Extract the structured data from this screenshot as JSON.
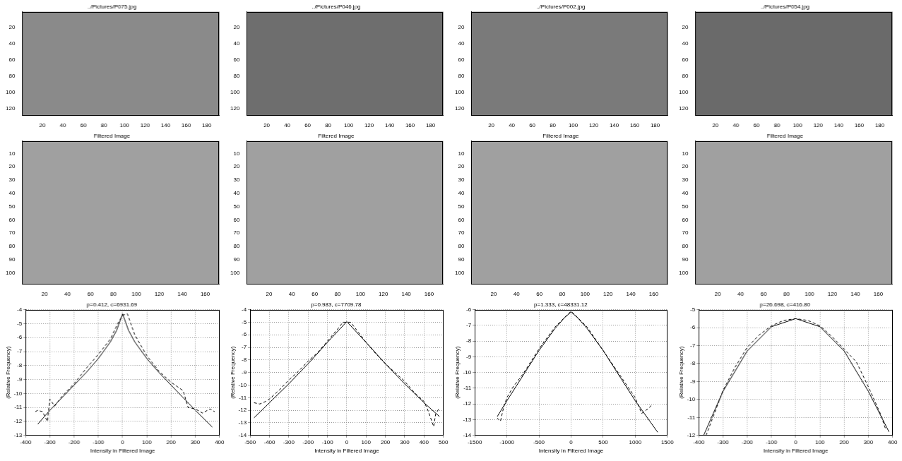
{
  "chart_data": [
    {
      "type": "image",
      "title": "../Pictures/P075.jpg",
      "xlim": [
        0.5,
        192.5
      ],
      "ylim": [
        0.5,
        128.5
      ],
      "xticks": [
        20,
        40,
        60,
        80,
        100,
        120,
        140,
        160,
        180
      ],
      "yticks": [
        20,
        40,
        60,
        80,
        100,
        120
      ],
      "color": "#8a8a8a"
    },
    {
      "type": "image",
      "title": "../Pictures/P046.jpg",
      "xlim": [
        0.5,
        192.5
      ],
      "ylim": [
        0.5,
        128.5
      ],
      "xticks": [
        20,
        40,
        60,
        80,
        100,
        120,
        140,
        160,
        180
      ],
      "yticks": [
        20,
        40,
        60,
        80,
        100,
        120
      ],
      "color": "#6e6e6e"
    },
    {
      "type": "image",
      "title": "../Pictures/P002.jpg",
      "xlim": [
        0.5,
        192.5
      ],
      "ylim": [
        0.5,
        128.5
      ],
      "xticks": [
        20,
        40,
        60,
        80,
        100,
        120,
        140,
        160,
        180
      ],
      "yticks": [
        20,
        40,
        60,
        80,
        100,
        120
      ],
      "color": "#7a7a7a"
    },
    {
      "type": "image",
      "title": "../Pictures/P054.jpg",
      "xlim": [
        0.5,
        192.5
      ],
      "ylim": [
        0.5,
        128.5
      ],
      "xticks": [
        20,
        40,
        60,
        80,
        100,
        120,
        140,
        160,
        180
      ],
      "yticks": [
        20,
        40,
        60,
        80,
        100,
        120
      ],
      "color": "#6a6a6a"
    },
    {
      "type": "image",
      "title": "Filtered Image",
      "xlim": [
        0.5,
        172.5
      ],
      "ylim": [
        0.5,
        108.5
      ],
      "xticks": [
        20,
        40,
        60,
        80,
        100,
        120,
        140,
        160
      ],
      "yticks": [
        10,
        20,
        30,
        40,
        50,
        60,
        70,
        80,
        90,
        100
      ],
      "color": "#a0a0a0"
    },
    {
      "type": "image",
      "title": "Filtered Image",
      "xlim": [
        0.5,
        172.5
      ],
      "ylim": [
        0.5,
        108.5
      ],
      "xticks": [
        20,
        40,
        60,
        80,
        100,
        120,
        140,
        160
      ],
      "yticks": [
        10,
        20,
        30,
        40,
        50,
        60,
        70,
        80,
        90,
        100
      ],
      "color": "#a0a0a0"
    },
    {
      "type": "image",
      "title": "Filtered Image",
      "xlim": [
        0.5,
        172.5
      ],
      "ylim": [
        0.5,
        108.5
      ],
      "xticks": [
        20,
        40,
        60,
        80,
        100,
        120,
        140,
        160
      ],
      "yticks": [
        10,
        20,
        30,
        40,
        50,
        60,
        70,
        80,
        90,
        100
      ],
      "color": "#a0a0a0"
    },
    {
      "type": "image",
      "title": "Filtered Image",
      "xlim": [
        0.5,
        172.5
      ],
      "ylim": [
        0.5,
        108.5
      ],
      "xticks": [
        20,
        40,
        60,
        80,
        100,
        120,
        140,
        160
      ],
      "yticks": [
        10,
        20,
        30,
        40,
        50,
        60,
        70,
        80,
        90,
        100
      ],
      "color": "#a0a0a0"
    },
    {
      "type": "line",
      "title": "p=0.412, c=6931.69",
      "x_label": "Intensity in Filtered Image",
      "y_label": "(Relative Frequency)",
      "grid": true,
      "xlim": [
        -400,
        400
      ],
      "xticks": [
        -400,
        -300,
        -200,
        -100,
        0,
        100,
        200,
        300,
        400
      ],
      "ylim": [
        -13,
        -4
      ],
      "yticks": [
        -13,
        -12,
        -11,
        -10,
        -9,
        -8,
        -7,
        -6,
        -5,
        -4
      ],
      "series": [
        {
          "color": "#000000",
          "line_style": "dashed",
          "x": [
            -360,
            -350,
            -330,
            -310,
            -300,
            -280,
            -250,
            -200,
            -150,
            -100,
            -50,
            -20,
            0,
            20,
            50,
            100,
            150,
            200,
            250,
            270,
            300,
            330,
            360,
            380
          ],
          "values": [
            -11.3,
            -11.2,
            -11.3,
            -12.0,
            -10.4,
            -10.9,
            -10.2,
            -9.3,
            -8.2,
            -7.2,
            -6.1,
            -5.0,
            -4.4,
            -4.3,
            -5.8,
            -7.3,
            -8.4,
            -9.2,
            -9.8,
            -11.0,
            -11.1,
            -11.4,
            -11.1,
            -11.3
          ]
        },
        {
          "color": "#000000",
          "line_style": "solid",
          "x": [
            -350,
            -300,
            -250,
            -200,
            -150,
            -100,
            -50,
            -25,
            0,
            25,
            50,
            100,
            150,
            200,
            250,
            300,
            370
          ],
          "values": [
            -12.2,
            -11.2,
            -10.3,
            -9.4,
            -8.5,
            -7.5,
            -6.3,
            -5.5,
            -4.3,
            -5.5,
            -6.3,
            -7.5,
            -8.5,
            -9.4,
            -10.3,
            -11.2,
            -12.4
          ]
        }
      ]
    },
    {
      "type": "line",
      "title": "p=0.983, c=7709.78",
      "x_label": "Intensity in Filtered Image",
      "y_label": "(Relative Frequency)",
      "grid": true,
      "xlim": [
        -500,
        500
      ],
      "xticks": [
        -500,
        -400,
        -300,
        -200,
        -100,
        0,
        100,
        200,
        300,
        400,
        500
      ],
      "ylim": [
        -14,
        -4
      ],
      "yticks": [
        -14,
        -13,
        -12,
        -11,
        -10,
        -9,
        -8,
        -7,
        -6,
        -5,
        -4
      ],
      "series": [
        {
          "color": "#000000",
          "line_style": "dashed",
          "x": [
            -480,
            -450,
            -420,
            -400,
            -350,
            -300,
            -250,
            -200,
            -150,
            -100,
            -50,
            -20,
            0,
            20,
            50,
            100,
            150,
            200,
            250,
            300,
            350,
            400,
            420,
            450,
            460,
            480
          ],
          "values": [
            -11.4,
            -11.5,
            -11.3,
            -11.1,
            -10.4,
            -9.6,
            -8.9,
            -8.1,
            -7.4,
            -6.5,
            -5.6,
            -5.0,
            -5.0,
            -5.0,
            -5.6,
            -6.6,
            -7.5,
            -8.3,
            -9.0,
            -9.7,
            -10.6,
            -11.3,
            -12.0,
            -13.3,
            -12.3,
            -11.8
          ]
        },
        {
          "color": "#000000",
          "line_style": "solid",
          "x": [
            -480,
            -400,
            -300,
            -200,
            -100,
            0,
            100,
            200,
            300,
            400,
            480
          ],
          "values": [
            -12.6,
            -11.4,
            -9.9,
            -8.3,
            -6.6,
            -4.95,
            -6.6,
            -8.3,
            -9.9,
            -11.4,
            -12.5
          ]
        }
      ]
    },
    {
      "type": "line",
      "title": "p=1.333, c=48331.12",
      "x_label": "Intensity in Filtered Image",
      "y_label": "(Relative Frequency)",
      "grid": true,
      "xlim": [
        -1500,
        1500
      ],
      "xticks": [
        -1500,
        -1000,
        -500,
        0,
        500,
        1000,
        1500
      ],
      "ylim": [
        -14,
        -6
      ],
      "yticks": [
        -14,
        -13,
        -12,
        -11,
        -10,
        -9,
        -8,
        -7,
        -6
      ],
      "series": [
        {
          "color": "#000000",
          "line_style": "dashed",
          "x": [
            -1150,
            -1100,
            -1050,
            -1000,
            -900,
            -750,
            -500,
            -250,
            0,
            250,
            500,
            750,
            1000,
            1100,
            1200,
            1250
          ],
          "values": [
            -12.9,
            -13.1,
            -12.2,
            -11.6,
            -10.9,
            -10.1,
            -8.5,
            -7.1,
            -6.1,
            -7.1,
            -8.6,
            -10.1,
            -11.6,
            -12.6,
            -12.3,
            -12.1
          ]
        },
        {
          "color": "#000000",
          "line_style": "solid",
          "x": [
            -1150,
            -1000,
            -750,
            -500,
            -250,
            -100,
            0,
            100,
            250,
            500,
            750,
            1000,
            1350
          ],
          "values": [
            -12.8,
            -11.8,
            -10.2,
            -8.6,
            -7.2,
            -6.5,
            -6.15,
            -6.5,
            -7.2,
            -8.6,
            -10.2,
            -11.8,
            -13.8
          ]
        }
      ]
    },
    {
      "type": "line",
      "title": "p=26.698, c=416.80",
      "x_label": "Intensity in Filtered Image",
      "y_label": "(Relative Frequency)",
      "grid": true,
      "xlim": [
        -400,
        400
      ],
      "xticks": [
        -400,
        -300,
        -200,
        -100,
        0,
        100,
        200,
        300,
        400
      ],
      "ylim": [
        -12,
        -5
      ],
      "yticks": [
        -12,
        -11,
        -10,
        -9,
        -8,
        -7,
        -6,
        -5
      ],
      "series": [
        {
          "color": "#000000",
          "line_style": "dashed",
          "x": [
            -370,
            -350,
            -300,
            -250,
            -200,
            -150,
            -100,
            -50,
            0,
            50,
            100,
            150,
            200,
            250,
            300,
            350,
            370
          ],
          "values": [
            -12.0,
            -11.3,
            -9.5,
            -8.2,
            -7.1,
            -6.4,
            -5.9,
            -5.6,
            -5.5,
            -5.6,
            -5.9,
            -6.5,
            -7.2,
            -7.9,
            -9.3,
            -10.8,
            -11.6
          ]
        },
        {
          "color": "#000000",
          "line_style": "solid",
          "x": [
            -380,
            -300,
            -200,
            -100,
            0,
            100,
            200,
            300,
            385
          ],
          "values": [
            -12.0,
            -9.55,
            -7.3,
            -5.95,
            -5.5,
            -5.95,
            -7.3,
            -9.55,
            -11.8
          ]
        }
      ]
    }
  ]
}
